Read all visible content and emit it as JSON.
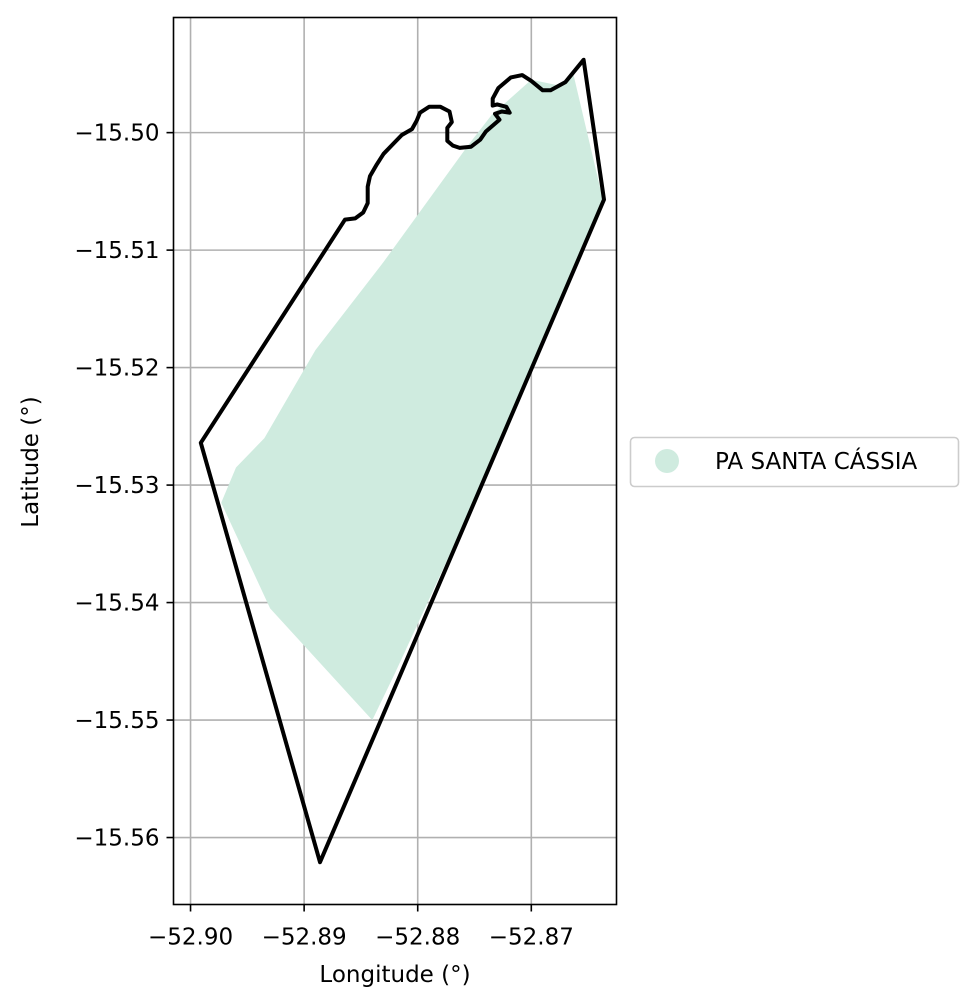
{
  "chart_data": {
    "type": "map",
    "xlabel": "Longitude (°)",
    "ylabel": "Latitude (°)",
    "xlim": [
      -52.9015,
      -52.8625
    ],
    "ylim": [
      -15.5657,
      -15.4902
    ],
    "grid": true,
    "x_ticks": [
      {
        "value": -52.9,
        "label": "−52.90"
      },
      {
        "value": -52.89,
        "label": "−52.89"
      },
      {
        "value": -52.88,
        "label": "−52.88"
      },
      {
        "value": -52.87,
        "label": "−52.87"
      }
    ],
    "y_ticks": [
      {
        "value": -15.5,
        "label": "−15.50"
      },
      {
        "value": -15.51,
        "label": "−15.51"
      },
      {
        "value": -15.52,
        "label": "−15.52"
      },
      {
        "value": -15.53,
        "label": "−15.53"
      },
      {
        "value": -15.54,
        "label": "−15.54"
      },
      {
        "value": -15.55,
        "label": "−15.55"
      },
      {
        "value": -15.56,
        "label": "−15.56"
      }
    ],
    "legend": {
      "placement": "right",
      "entries": [
        {
          "label": "PA SANTA CÁSSIA",
          "color": "#cfebdf"
        }
      ]
    },
    "fill_polygon": {
      "color": "#cfebdf",
      "points": [
        [
          -52.8735,
          -15.4985
        ],
        [
          -52.87,
          -15.4955
        ],
        [
          -52.8675,
          -15.496
        ],
        [
          -52.8663,
          -15.495
        ],
        [
          -52.8637,
          -15.5057
        ],
        [
          -52.8735,
          -15.5282
        ],
        [
          -52.882,
          -15.546
        ],
        [
          -52.884,
          -15.55
        ],
        [
          -52.893,
          -15.5405
        ],
        [
          -52.8973,
          -15.5315
        ],
        [
          -52.896,
          -15.5285
        ],
        [
          -52.8935,
          -15.526
        ],
        [
          -52.889,
          -15.5185
        ],
        [
          -52.883,
          -15.511
        ],
        [
          -52.8755,
          -15.501
        ]
      ]
    },
    "outline_polygon": {
      "color": "#000000",
      "points": [
        [
          -52.8991,
          -15.5264
        ],
        [
          -52.8886,
          -15.5621
        ],
        [
          -52.8636,
          -15.5057
        ],
        [
          -52.8654,
          -15.4938
        ],
        [
          -52.867,
          -15.4957
        ],
        [
          -52.8683,
          -15.4964
        ],
        [
          -52.869,
          -15.4964
        ],
        [
          -52.87,
          -15.4956
        ],
        [
          -52.8708,
          -15.4951
        ],
        [
          -52.8718,
          -15.4953
        ],
        [
          -52.8729,
          -15.4962
        ],
        [
          -52.8734,
          -15.4971
        ],
        [
          -52.8734,
          -15.4977
        ],
        [
          -52.873,
          -15.4976
        ],
        [
          -52.8722,
          -15.4978
        ],
        [
          -52.8719,
          -15.4983
        ],
        [
          -52.8726,
          -15.4982
        ],
        [
          -52.8732,
          -15.4984
        ],
        [
          -52.8728,
          -15.4989
        ],
        [
          -52.874,
          -15.4999
        ],
        [
          -52.8745,
          -15.5006
        ],
        [
          -52.8753,
          -15.5012
        ],
        [
          -52.8763,
          -15.5013
        ],
        [
          -52.8769,
          -15.5011
        ],
        [
          -52.8774,
          -15.5007
        ],
        [
          -52.8774,
          -15.4996
        ],
        [
          -52.877,
          -15.4991
        ],
        [
          -52.8772,
          -15.4982
        ],
        [
          -52.878,
          -15.4978
        ],
        [
          -52.879,
          -15.4978
        ],
        [
          -52.8798,
          -15.4983
        ],
        [
          -52.8801,
          -15.499
        ],
        [
          -52.8805,
          -15.4997
        ],
        [
          -52.8814,
          -15.5002
        ],
        [
          -52.8822,
          -15.501
        ],
        [
          -52.883,
          -15.5018
        ],
        [
          -52.8836,
          -15.5027
        ],
        [
          -52.8842,
          -15.5037
        ],
        [
          -52.8844,
          -15.5046
        ],
        [
          -52.8844,
          -15.506
        ],
        [
          -52.8848,
          -15.5068
        ],
        [
          -52.8855,
          -15.5073
        ],
        [
          -52.8864,
          -15.5074
        ],
        [
          -52.8991,
          -15.5264
        ]
      ]
    }
  }
}
